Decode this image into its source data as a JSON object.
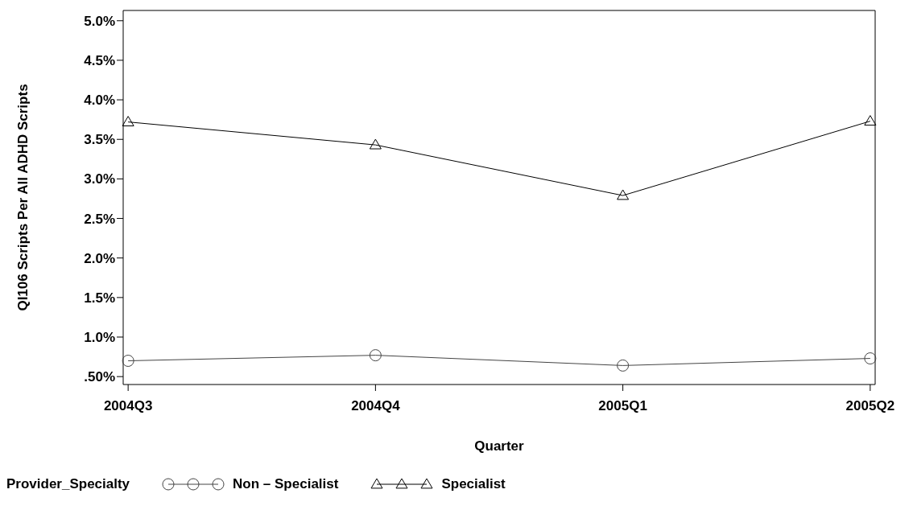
{
  "chart_data": {
    "type": "line",
    "xlabel": "Quarter",
    "ylabel": "QI106 Scripts Per All ADHD Scripts",
    "legend_title": "Provider_Specialty",
    "legend": "bottom",
    "categories": [
      "2004Q3",
      "2004Q4",
      "2005Q1",
      "2005Q2"
    ],
    "series": [
      {
        "name": "Non – Specialist",
        "color": "#444444",
        "marker": "circle",
        "values": [
          0.7,
          0.77,
          0.64,
          0.73
        ]
      },
      {
        "name": "Specialist",
        "color": "#000000",
        "marker": "triangle",
        "values": [
          3.72,
          3.43,
          2.79,
          3.73
        ]
      }
    ],
    "ylim": [
      0.4,
      5.13
    ],
    "yticks": [
      {
        "value": 0.5,
        "label": ".50%"
      },
      {
        "value": 1.0,
        "label": "1.0%"
      },
      {
        "value": 1.5,
        "label": "1.5%"
      },
      {
        "value": 2.0,
        "label": "2.0%"
      },
      {
        "value": 2.5,
        "label": "2.5%"
      },
      {
        "value": 3.0,
        "label": "3.0%"
      },
      {
        "value": 3.5,
        "label": "3.5%"
      },
      {
        "value": 4.0,
        "label": "4.0%"
      },
      {
        "value": 4.5,
        "label": "4.5%"
      },
      {
        "value": 5.0,
        "label": "5.0%"
      }
    ],
    "grid": false
  }
}
